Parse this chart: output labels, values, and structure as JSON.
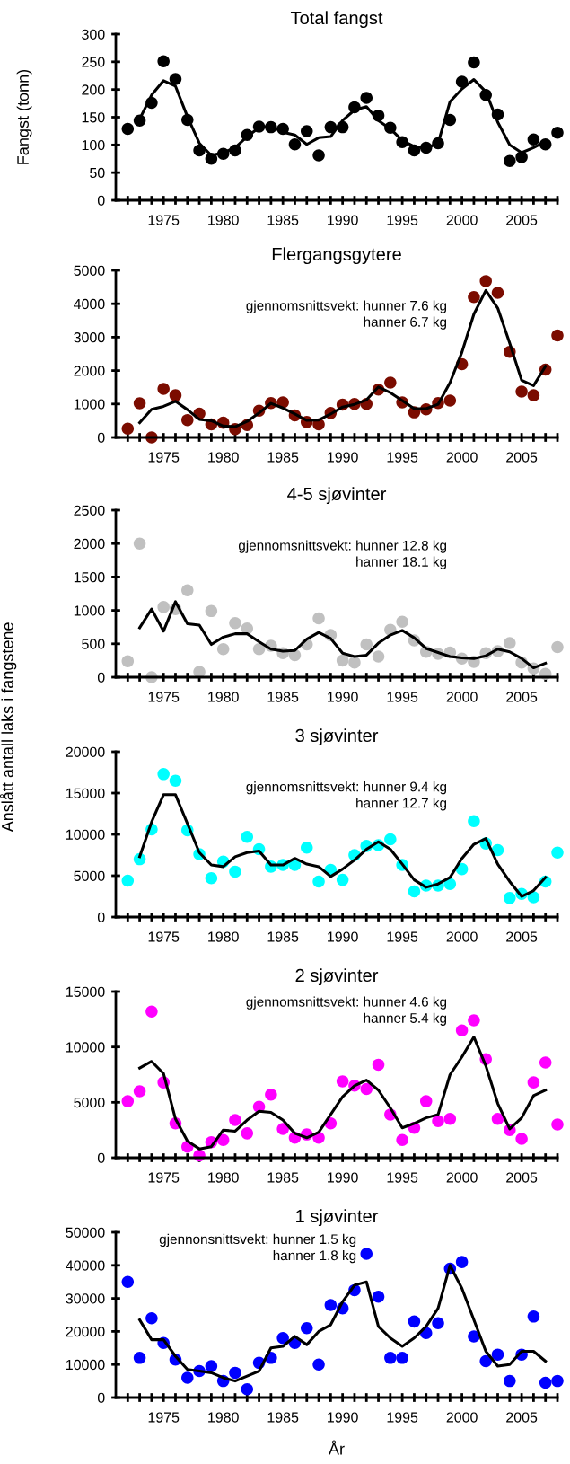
{
  "chart_data": [
    {
      "type": "scatter",
      "title": "Total fangst",
      "ylabel": "Fangst (tonn)",
      "xlim": [
        1971,
        2008
      ],
      "ylim": [
        0,
        300
      ],
      "yticks": [
        0,
        50,
        100,
        150,
        200,
        250,
        300
      ],
      "xticks": [
        {
          "value": 1972,
          "label": null
        },
        {
          "value": 1973,
          "label": null
        },
        {
          "value": 1974,
          "label": null
        },
        1975,
        {
          "value": 1976,
          "label": null
        },
        {
          "value": 1977,
          "label": null
        },
        {
          "value": 1978,
          "label": null
        },
        {
          "value": 1979,
          "label": null
        },
        1980,
        {
          "value": 1981,
          "label": null
        },
        {
          "value": 1982,
          "label": null
        },
        {
          "value": 1983,
          "label": null
        },
        {
          "value": 1984,
          "label": null
        },
        1985,
        {
          "value": 1986,
          "label": null
        },
        {
          "value": 1987,
          "label": null
        },
        {
          "value": 1988,
          "label": null
        },
        {
          "value": 1989,
          "label": null
        },
        1990,
        {
          "value": 1991,
          "label": null
        },
        {
          "value": 1992,
          "label": null
        },
        {
          "value": 1993,
          "label": null
        },
        {
          "value": 1994,
          "label": null
        },
        1995,
        {
          "value": 1996,
          "label": null
        },
        {
          "value": 1997,
          "label": null
        },
        {
          "value": 1998,
          "label": null
        },
        {
          "value": 1999,
          "label": null
        },
        2000,
        {
          "value": 2001,
          "label": null
        },
        {
          "value": 2002,
          "label": null
        },
        {
          "value": 2003,
          "label": null
        },
        {
          "value": 2004,
          "label": null
        },
        2005,
        {
          "value": 2006,
          "label": null
        },
        {
          "value": 2007,
          "label": null
        },
        {
          "value": 2008,
          "label": null
        }
      ],
      "series": [
        {
          "type": "scatter",
          "marker": "circle",
          "color": "#000000",
          "x": [
            1972,
            1973,
            1974,
            1975,
            1976,
            1977,
            1978,
            1979,
            1980,
            1981,
            1982,
            1983,
            1984,
            1985,
            1986,
            1987,
            1988,
            1989,
            1990,
            1991,
            1992,
            1993,
            1994,
            1995,
            1996,
            1997,
            1998,
            1999,
            2000,
            2001,
            2002,
            2003,
            2004,
            2005,
            2006,
            2007,
            2008
          ],
          "values": [
            129,
            144,
            176,
            251,
            219,
            145,
            90,
            75,
            84,
            90,
            118,
            133,
            132,
            129,
            101,
            125,
            81,
            132,
            132,
            168,
            185,
            153,
            131,
            105,
            90,
            95,
            103,
            145,
            214,
            249,
            190,
            155,
            71,
            78,
            110,
            101,
            122
          ]
        },
        {
          "type": "line",
          "marker": "none",
          "line_style": "solid",
          "color": "#000000",
          "x": [
            1973,
            1974,
            1975,
            1976,
            1977,
            1978,
            1979,
            1980,
            1981,
            1982,
            1983,
            1984,
            1985,
            1986,
            1987,
            1988,
            1989,
            1990,
            1991,
            1992,
            1993,
            1994,
            1995,
            1996,
            1997,
            1998,
            1999,
            2000,
            2001,
            2002,
            2003,
            2004,
            2005,
            2006,
            2007
          ],
          "values": [
            147,
            190,
            216,
            206,
            151,
            103,
            81,
            86,
            95,
            115,
            131,
            134,
            123,
            118,
            101,
            113,
            115,
            144,
            163,
            169,
            144,
            129,
            108,
            97,
            94,
            103,
            178,
            201,
            218,
            196,
            141,
            100,
            86,
            95,
            106
          ]
        }
      ]
    },
    {
      "type": "scatter",
      "title": "Flergangsgytere",
      "annotations": [
        "gjennomsnittsvekt: hunner 7.6 kg\nhanner 6.7 kg"
      ],
      "xlim": [
        1971,
        2008
      ],
      "ylim": [
        0,
        5000
      ],
      "yticks": [
        0,
        1000,
        2000,
        3000,
        4000,
        5000
      ],
      "xticks": [
        {
          "value": 1972,
          "label": null
        },
        {
          "value": 1973,
          "label": null
        },
        {
          "value": 1974,
          "label": null
        },
        1975,
        {
          "value": 1976,
          "label": null
        },
        {
          "value": 1977,
          "label": null
        },
        {
          "value": 1978,
          "label": null
        },
        {
          "value": 1979,
          "label": null
        },
        1980,
        {
          "value": 1981,
          "label": null
        },
        {
          "value": 1982,
          "label": null
        },
        {
          "value": 1983,
          "label": null
        },
        {
          "value": 1984,
          "label": null
        },
        1985,
        {
          "value": 1986,
          "label": null
        },
        {
          "value": 1987,
          "label": null
        },
        {
          "value": 1988,
          "label": null
        },
        {
          "value": 1989,
          "label": null
        },
        1990,
        {
          "value": 1991,
          "label": null
        },
        {
          "value": 1992,
          "label": null
        },
        {
          "value": 1993,
          "label": null
        },
        {
          "value": 1994,
          "label": null
        },
        1995,
        {
          "value": 1996,
          "label": null
        },
        {
          "value": 1997,
          "label": null
        },
        {
          "value": 1998,
          "label": null
        },
        {
          "value": 1999,
          "label": null
        },
        2000,
        {
          "value": 2001,
          "label": null
        },
        {
          "value": 2002,
          "label": null
        },
        {
          "value": 2003,
          "label": null
        },
        {
          "value": 2004,
          "label": null
        },
        2005,
        {
          "value": 2006,
          "label": null
        },
        {
          "value": 2007,
          "label": null
        },
        {
          "value": 2008,
          "label": null
        }
      ],
      "series": [
        {
          "type": "scatter",
          "marker": "circle",
          "color": "#7b0c00",
          "x": [
            1972,
            1973,
            1974,
            1975,
            1976,
            1977,
            1978,
            1979,
            1980,
            1981,
            1982,
            1983,
            1984,
            1985,
            1986,
            1987,
            1988,
            1989,
            1990,
            1991,
            1992,
            1993,
            1994,
            1995,
            1996,
            1997,
            1998,
            1999,
            2000,
            2001,
            2002,
            2003,
            2004,
            2005,
            2006,
            2007,
            2008
          ],
          "values": [
            260,
            1020,
            0,
            1450,
            1260,
            520,
            710,
            390,
            440,
            250,
            370,
            800,
            1030,
            1050,
            660,
            460,
            390,
            730,
            980,
            1000,
            1000,
            1430,
            1640,
            1050,
            750,
            840,
            1030,
            1100,
            2190,
            4200,
            4680,
            4330,
            2560,
            1370,
            1260,
            2030,
            3050
          ]
        },
        {
          "type": "line",
          "marker": "none",
          "line_style": "solid",
          "color": "#000000",
          "x": [
            1973,
            1974,
            1975,
            1976,
            1977,
            1978,
            1979,
            1980,
            1981,
            1982,
            1983,
            1984,
            1985,
            1986,
            1987,
            1988,
            1989,
            1990,
            1991,
            1992,
            1993,
            1994,
            1995,
            1996,
            1997,
            1998,
            1999,
            2000,
            2001,
            2002,
            2003,
            2004,
            2005,
            2006,
            2007
          ],
          "values": [
            440,
            840,
            930,
            1080,
            830,
            540,
            500,
            340,
            320,
            480,
            730,
            1020,
            880,
            700,
            510,
            520,
            700,
            910,
            990,
            1120,
            1510,
            1340,
            1100,
            860,
            860,
            990,
            1640,
            2550,
            3690,
            4400,
            3870,
            2820,
            1710,
            1550,
            2130
          ]
        }
      ]
    },
    {
      "type": "scatter",
      "title": "4-5 sjøvinter",
      "annotations": [
        "gjennomsnittsvekt: hunner 12.8 kg\nhanner 18.1 kg"
      ],
      "xlim": [
        1971,
        2008
      ],
      "ylim": [
        0,
        2500
      ],
      "yticks": [
        0,
        500,
        1000,
        1500,
        2000,
        2500
      ],
      "xticks": [
        {
          "value": 1972,
          "label": null
        },
        {
          "value": 1973,
          "label": null
        },
        {
          "value": 1974,
          "label": null
        },
        1975,
        {
          "value": 1976,
          "label": null
        },
        {
          "value": 1977,
          "label": null
        },
        {
          "value": 1978,
          "label": null
        },
        {
          "value": 1979,
          "label": null
        },
        1980,
        {
          "value": 1981,
          "label": null
        },
        {
          "value": 1982,
          "label": null
        },
        {
          "value": 1983,
          "label": null
        },
        {
          "value": 1984,
          "label": null
        },
        1985,
        {
          "value": 1986,
          "label": null
        },
        {
          "value": 1987,
          "label": null
        },
        {
          "value": 1988,
          "label": null
        },
        {
          "value": 1989,
          "label": null
        },
        1990,
        {
          "value": 1991,
          "label": null
        },
        {
          "value": 1992,
          "label": null
        },
        {
          "value": 1993,
          "label": null
        },
        {
          "value": 1994,
          "label": null
        },
        1995,
        {
          "value": 1996,
          "label": null
        },
        {
          "value": 1997,
          "label": null
        },
        {
          "value": 1998,
          "label": null
        },
        {
          "value": 1999,
          "label": null
        },
        2000,
        {
          "value": 2001,
          "label": null
        },
        {
          "value": 2002,
          "label": null
        },
        {
          "value": 2003,
          "label": null
        },
        {
          "value": 2004,
          "label": null
        },
        2005,
        {
          "value": 2006,
          "label": null
        },
        {
          "value": 2007,
          "label": null
        },
        {
          "value": 2008,
          "label": null
        }
      ],
      "series": [
        {
          "type": "scatter",
          "marker": "circle",
          "color": "#c0c0c0",
          "x": [
            1972,
            1973,
            1974,
            1975,
            1976,
            1977,
            1978,
            1979,
            1980,
            1981,
            1982,
            1983,
            1984,
            1985,
            1986,
            1987,
            1988,
            1989,
            1990,
            1991,
            1992,
            1993,
            1994,
            1995,
            1996,
            1997,
            1998,
            1999,
            2000,
            2001,
            2002,
            2003,
            2004,
            2005,
            2006,
            2007,
            2008
          ],
          "values": [
            240,
            2000,
            0,
            1050,
            1020,
            1300,
            80,
            990,
            420,
            810,
            730,
            420,
            470,
            360,
            330,
            490,
            880,
            630,
            250,
            220,
            490,
            310,
            710,
            830,
            550,
            380,
            350,
            370,
            280,
            230,
            360,
            390,
            510,
            220,
            130,
            50,
            450
          ]
        },
        {
          "type": "line",
          "marker": "none",
          "line_style": "solid",
          "color": "#000000",
          "x": [
            1973,
            1974,
            1975,
            1976,
            1977,
            1978,
            1979,
            1980,
            1981,
            1982,
            1983,
            1984,
            1985,
            1986,
            1987,
            1988,
            1989,
            1990,
            1991,
            1992,
            1993,
            1994,
            1995,
            1996,
            1997,
            1998,
            1999,
            2000,
            2001,
            2002,
            2003,
            2004,
            2005,
            2006,
            2007
          ],
          "values": [
            740,
            1020,
            690,
            1130,
            800,
            780,
            490,
            600,
            650,
            650,
            530,
            420,
            390,
            400,
            570,
            670,
            580,
            360,
            310,
            330,
            510,
            630,
            700,
            590,
            430,
            370,
            310,
            290,
            280,
            320,
            420,
            380,
            280,
            140,
            210
          ]
        }
      ]
    },
    {
      "type": "scatter",
      "title": "3 sjøvinter",
      "ylabel": "Anslått antall laks i fangstene",
      "annotations": [
        "gjennomsnittsvekt: hunner 9.4 kg\nhanner 12.7 kg"
      ],
      "xlim": [
        1971,
        2008
      ],
      "ylim": [
        0,
        20000
      ],
      "yticks": [
        0,
        5000,
        10000,
        15000,
        20000
      ],
      "xticks": [
        {
          "value": 1972,
          "label": null
        },
        {
          "value": 1973,
          "label": null
        },
        {
          "value": 1974,
          "label": null
        },
        1975,
        {
          "value": 1976,
          "label": null
        },
        {
          "value": 1977,
          "label": null
        },
        {
          "value": 1978,
          "label": null
        },
        {
          "value": 1979,
          "label": null
        },
        1980,
        {
          "value": 1981,
          "label": null
        },
        {
          "value": 1982,
          "label": null
        },
        {
          "value": 1983,
          "label": null
        },
        {
          "value": 1984,
          "label": null
        },
        1985,
        {
          "value": 1986,
          "label": null
        },
        {
          "value": 1987,
          "label": null
        },
        {
          "value": 1988,
          "label": null
        },
        {
          "value": 1989,
          "label": null
        },
        1990,
        {
          "value": 1991,
          "label": null
        },
        {
          "value": 1992,
          "label": null
        },
        {
          "value": 1993,
          "label": null
        },
        {
          "value": 1994,
          "label": null
        },
        1995,
        {
          "value": 1996,
          "label": null
        },
        {
          "value": 1997,
          "label": null
        },
        {
          "value": 1998,
          "label": null
        },
        {
          "value": 1999,
          "label": null
        },
        2000,
        {
          "value": 2001,
          "label": null
        },
        {
          "value": 2002,
          "label": null
        },
        {
          "value": 2003,
          "label": null
        },
        {
          "value": 2004,
          "label": null
        },
        2005,
        {
          "value": 2006,
          "label": null
        },
        {
          "value": 2007,
          "label": null
        },
        {
          "value": 2008,
          "label": null
        }
      ],
      "series": [
        {
          "type": "scatter",
          "marker": "circle",
          "color": "#00ffff",
          "x": [
            1972,
            1973,
            1974,
            1975,
            1976,
            1977,
            1978,
            1979,
            1980,
            1981,
            1982,
            1983,
            1984,
            1985,
            1986,
            1987,
            1988,
            1989,
            1990,
            1991,
            1992,
            1993,
            1994,
            1995,
            1996,
            1997,
            1998,
            1999,
            2000,
            2001,
            2002,
            2003,
            2004,
            2005,
            2006,
            2007,
            2008
          ],
          "values": [
            4400,
            7000,
            10600,
            17300,
            16500,
            10500,
            7600,
            4700,
            6700,
            5500,
            9700,
            8200,
            6100,
            6300,
            6300,
            8400,
            4300,
            5700,
            4500,
            7500,
            8600,
            8700,
            9400,
            6300,
            3100,
            3800,
            3800,
            4000,
            5800,
            11600,
            8900,
            8100,
            2300,
            2800,
            2400,
            4300,
            7800
          ]
        },
        {
          "type": "line",
          "marker": "none",
          "line_style": "solid",
          "color": "#000000",
          "x": [
            1973,
            1974,
            1975,
            1976,
            1977,
            1978,
            1979,
            1980,
            1981,
            1982,
            1983,
            1984,
            1985,
            1986,
            1987,
            1988,
            1989,
            1990,
            1991,
            1992,
            1993,
            1994,
            1995,
            1996,
            1997,
            1998,
            1999,
            2000,
            2001,
            2002,
            2003,
            2004,
            2005,
            2006,
            2007
          ],
          "values": [
            7300,
            11500,
            14800,
            14800,
            11300,
            7800,
            6300,
            6100,
            7300,
            7800,
            8000,
            6300,
            6300,
            7100,
            6400,
            6100,
            4900,
            5800,
            6900,
            8200,
            9100,
            8200,
            6400,
            4500,
            3600,
            4000,
            4800,
            7100,
            8800,
            9500,
            6400,
            4300,
            2500,
            3200,
            4800
          ]
        }
      ]
    },
    {
      "type": "scatter",
      "title": "2 sjøvinter",
      "annotations": [
        "gjennomsnittsvekt: hunner 4.6 kg\nhanner 5.4 kg"
      ],
      "xlim": [
        1971,
        2008
      ],
      "ylim": [
        0,
        15000
      ],
      "yticks": [
        0,
        5000,
        10000,
        15000
      ],
      "xticks": [
        {
          "value": 1972,
          "label": null
        },
        {
          "value": 1973,
          "label": null
        },
        {
          "value": 1974,
          "label": null
        },
        1975,
        {
          "value": 1976,
          "label": null
        },
        {
          "value": 1977,
          "label": null
        },
        {
          "value": 1978,
          "label": null
        },
        {
          "value": 1979,
          "label": null
        },
        1980,
        {
          "value": 1981,
          "label": null
        },
        {
          "value": 1982,
          "label": null
        },
        {
          "value": 1983,
          "label": null
        },
        {
          "value": 1984,
          "label": null
        },
        1985,
        {
          "value": 1986,
          "label": null
        },
        {
          "value": 1987,
          "label": null
        },
        {
          "value": 1988,
          "label": null
        },
        {
          "value": 1989,
          "label": null
        },
        1990,
        {
          "value": 1991,
          "label": null
        },
        {
          "value": 1992,
          "label": null
        },
        {
          "value": 1993,
          "label": null
        },
        {
          "value": 1994,
          "label": null
        },
        1995,
        {
          "value": 1996,
          "label": null
        },
        {
          "value": 1997,
          "label": null
        },
        {
          "value": 1998,
          "label": null
        },
        {
          "value": 1999,
          "label": null
        },
        2000,
        {
          "value": 2001,
          "label": null
        },
        {
          "value": 2002,
          "label": null
        },
        {
          "value": 2003,
          "label": null
        },
        {
          "value": 2004,
          "label": null
        },
        2005,
        {
          "value": 2006,
          "label": null
        },
        {
          "value": 2007,
          "label": null
        },
        {
          "value": 2008,
          "label": null
        }
      ],
      "series": [
        {
          "type": "scatter",
          "marker": "circle",
          "color": "#ff00ff",
          "x": [
            1972,
            1973,
            1974,
            1975,
            1976,
            1977,
            1978,
            1979,
            1980,
            1981,
            1982,
            1983,
            1984,
            1985,
            1986,
            1987,
            1988,
            1989,
            1990,
            1991,
            1992,
            1993,
            1994,
            1995,
            1996,
            1997,
            1998,
            1999,
            2000,
            2001,
            2002,
            2003,
            2004,
            2005,
            2006,
            2007,
            2008
          ],
          "values": [
            5100,
            6000,
            13200,
            6800,
            3100,
            1000,
            200,
            1400,
            1600,
            3400,
            2200,
            4600,
            5700,
            2600,
            1800,
            2100,
            1800,
            3100,
            6900,
            6500,
            6200,
            8400,
            3900,
            1600,
            2700,
            5100,
            3300,
            3500,
            11500,
            12400,
            8900,
            3500,
            2500,
            1700,
            6800,
            8600,
            3000
          ]
        },
        {
          "type": "line",
          "marker": "none",
          "line_style": "solid",
          "color": "#000000",
          "x": [
            1973,
            1974,
            1975,
            1976,
            1977,
            1978,
            1979,
            1980,
            1981,
            1982,
            1983,
            1984,
            1985,
            1986,
            1987,
            1988,
            1989,
            1990,
            1991,
            1992,
            1993,
            1994,
            1995,
            1996,
            1997,
            1998,
            1999,
            2000,
            2001,
            2002,
            2003,
            2004,
            2005,
            2006,
            2007
          ],
          "values": [
            8100,
            8700,
            7600,
            3500,
            1500,
            800,
            1000,
            2500,
            2400,
            3400,
            4200,
            4100,
            3400,
            2200,
            1800,
            2300,
            3900,
            5500,
            6500,
            7000,
            6100,
            4500,
            2700,
            3100,
            3600,
            3900,
            7500,
            9100,
            10900,
            8300,
            4900,
            2600,
            3600,
            5600,
            6100
          ]
        }
      ]
    },
    {
      "type": "scatter",
      "title": "1 sjøvinter",
      "xlabel": "År",
      "annotations": [
        "gjennonsnittsvekt: hunner 1.5 kg\nhanner 1.8 kg"
      ],
      "xlim": [
        1971,
        2008
      ],
      "ylim": [
        0,
        50000
      ],
      "yticks": [
        0,
        10000,
        20000,
        30000,
        40000,
        50000
      ],
      "xticks": [
        {
          "value": 1972,
          "label": null
        },
        {
          "value": 1973,
          "label": null
        },
        {
          "value": 1974,
          "label": null
        },
        1975,
        {
          "value": 1976,
          "label": null
        },
        {
          "value": 1977,
          "label": null
        },
        {
          "value": 1978,
          "label": null
        },
        {
          "value": 1979,
          "label": null
        },
        1980,
        {
          "value": 1981,
          "label": null
        },
        {
          "value": 1982,
          "label": null
        },
        {
          "value": 1983,
          "label": null
        },
        {
          "value": 1984,
          "label": null
        },
        1985,
        {
          "value": 1986,
          "label": null
        },
        {
          "value": 1987,
          "label": null
        },
        {
          "value": 1988,
          "label": null
        },
        {
          "value": 1989,
          "label": null
        },
        1990,
        {
          "value": 1991,
          "label": null
        },
        {
          "value": 1992,
          "label": null
        },
        {
          "value": 1993,
          "label": null
        },
        {
          "value": 1994,
          "label": null
        },
        1995,
        {
          "value": 1996,
          "label": null
        },
        {
          "value": 1997,
          "label": null
        },
        {
          "value": 1998,
          "label": null
        },
        {
          "value": 1999,
          "label": null
        },
        2000,
        {
          "value": 2001,
          "label": null
        },
        {
          "value": 2002,
          "label": null
        },
        {
          "value": 2003,
          "label": null
        },
        {
          "value": 2004,
          "label": null
        },
        2005,
        {
          "value": 2006,
          "label": null
        },
        {
          "value": 2007,
          "label": null
        },
        {
          "value": 2008,
          "label": null
        }
      ],
      "series": [
        {
          "type": "scatter",
          "marker": "circle",
          "color": "#0000ff",
          "x": [
            1972,
            1973,
            1974,
            1975,
            1976,
            1977,
            1978,
            1979,
            1980,
            1981,
            1982,
            1983,
            1984,
            1985,
            1986,
            1987,
            1988,
            1989,
            1990,
            1991,
            1992,
            1993,
            1994,
            1995,
            1996,
            1997,
            1998,
            1999,
            2000,
            2001,
            2002,
            2003,
            2004,
            2005,
            2006,
            2007,
            2008
          ],
          "values": [
            35000,
            12000,
            24000,
            16500,
            11500,
            6000,
            8000,
            9500,
            5000,
            7500,
            2500,
            10500,
            12000,
            18000,
            16500,
            21000,
            10000,
            28000,
            27000,
            32500,
            43500,
            30500,
            12000,
            12000,
            23000,
            19500,
            22500,
            39000,
            41000,
            18500,
            11000,
            13000,
            5000,
            13000,
            24500,
            4500,
            5000
          ]
        },
        {
          "type": "line",
          "marker": "none",
          "line_style": "solid",
          "color": "#000000",
          "x": [
            1973,
            1974,
            1975,
            1976,
            1977,
            1978,
            1979,
            1980,
            1981,
            1982,
            1983,
            1984,
            1985,
            1986,
            1987,
            1988,
            1989,
            1990,
            1991,
            1992,
            1993,
            1994,
            1995,
            1996,
            1997,
            1998,
            1999,
            2000,
            2001,
            2002,
            2003,
            2004,
            2005,
            2006,
            2007
          ],
          "values": [
            23500,
            17500,
            17500,
            12500,
            8500,
            8000,
            7500,
            6000,
            5000,
            6500,
            8000,
            15000,
            15500,
            18500,
            16000,
            20000,
            22000,
            29000,
            34000,
            35000,
            21500,
            18000,
            15500,
            18000,
            21500,
            27000,
            40000,
            33000,
            23500,
            14000,
            9500,
            10000,
            14000,
            14000,
            11000
          ]
        }
      ]
    }
  ]
}
